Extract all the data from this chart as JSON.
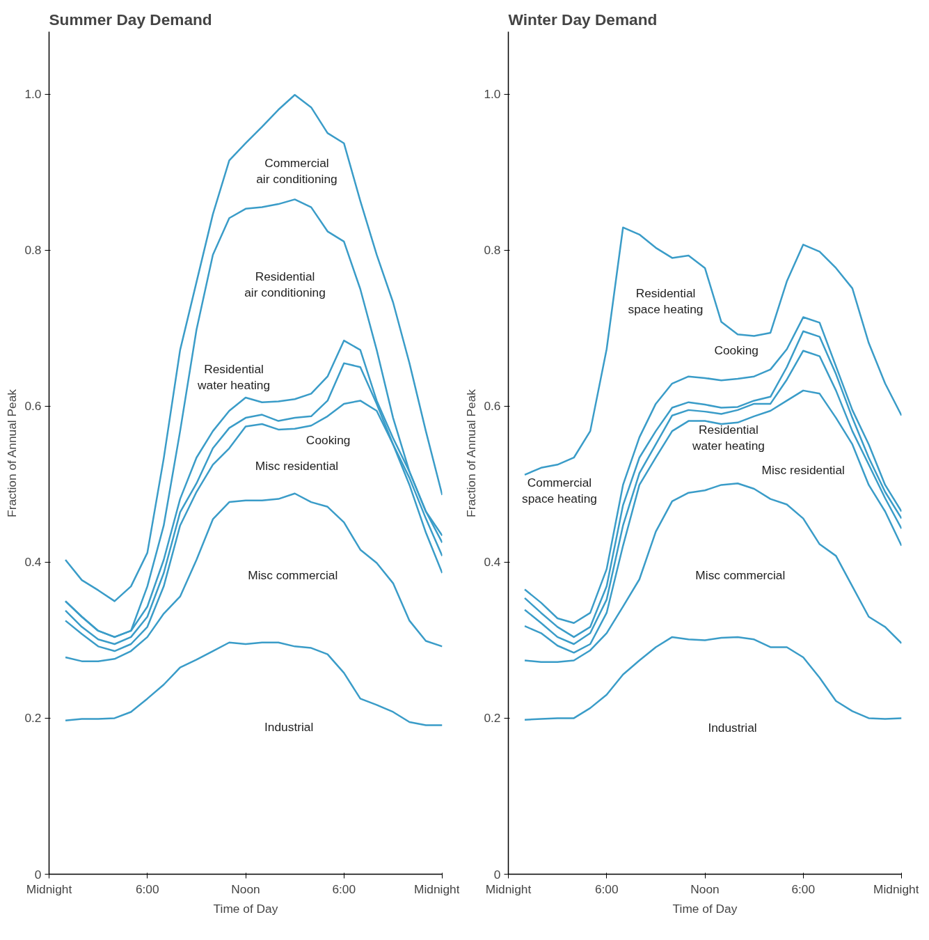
{
  "chart_data": [
    {
      "type": "line",
      "title": "Summer Day Demand",
      "xlabel": "Time of Day",
      "ylabel": "Fraction of Annual Peak",
      "ylim": [
        0,
        1.08
      ],
      "categories": [
        "Midnight",
        null,
        null,
        null,
        null,
        null,
        "6:00",
        null,
        null,
        null,
        null,
        null,
        "Noon",
        null,
        null,
        null,
        null,
        null,
        "6:00",
        null,
        null,
        null,
        null,
        null,
        "Midnight"
      ],
      "yticks": [
        0,
        {
          "value": 0.2,
          "label": "0.2"
        },
        {
          "value": 0.4,
          "label": "0.4"
        },
        {
          "value": 0.6,
          "label": "0.6"
        },
        {
          "value": 0.8,
          "label": "0.8"
        },
        {
          "value": 1.0,
          "label": "1.0"
        }
      ],
      "grid": false,
      "marker": "none",
      "line_style": "solid",
      "series": [
        {
          "color": "#3a9cc8",
          "values": [
            null,
            0.197,
            0.199,
            0.199,
            0.2,
            0.208,
            0.225,
            0.243,
            0.265,
            0.275,
            0.286,
            0.297,
            0.295,
            0.297,
            0.297,
            0.292,
            0.29,
            0.282,
            0.258,
            0.225,
            0.217,
            0.208,
            0.195,
            0.191,
            0.191
          ]
        },
        {
          "color": "#3a9cc8",
          "values": [
            null,
            0.278,
            0.273,
            0.273,
            0.276,
            0.286,
            0.304,
            0.334,
            0.356,
            0.403,
            0.455,
            0.477,
            0.479,
            0.479,
            0.481,
            0.488,
            0.477,
            0.471,
            0.451,
            0.416,
            0.399,
            0.373,
            0.325,
            0.299,
            0.292
          ]
        },
        {
          "color": "#3a9cc8",
          "values": [
            null,
            0.325,
            0.308,
            0.292,
            0.286,
            0.295,
            0.317,
            0.369,
            0.447,
            0.49,
            0.525,
            0.546,
            0.574,
            0.577,
            0.57,
            0.571,
            0.575,
            0.587,
            0.603,
            0.607,
            0.594,
            0.551,
            0.499,
            0.438,
            0.386
          ]
        },
        {
          "color": "#3a9cc8",
          "values": [
            null,
            0.338,
            0.317,
            0.301,
            0.295,
            0.304,
            0.33,
            0.386,
            0.464,
            0.501,
            0.546,
            0.572,
            0.585,
            0.589,
            0.581,
            0.585,
            0.587,
            0.607,
            0.655,
            0.65,
            0.603,
            0.551,
            0.508,
            0.456,
            0.408
          ]
        },
        {
          "color": "#3a9cc8",
          "values": [
            null,
            0.35,
            0.33,
            0.312,
            0.304,
            0.312,
            0.343,
            0.403,
            0.481,
            0.534,
            0.568,
            0.594,
            0.611,
            0.605,
            0.606,
            0.609,
            0.616,
            0.638,
            0.684,
            0.672,
            0.607,
            0.559,
            0.516,
            0.465,
            0.425
          ]
        },
        {
          "color": "#3a9cc8",
          "values": [
            null,
            0.35,
            0.33,
            0.312,
            0.304,
            0.312,
            0.369,
            0.447,
            0.568,
            0.698,
            0.794,
            0.841,
            0.853,
            0.855,
            0.859,
            0.865,
            0.855,
            0.824,
            0.811,
            0.75,
            0.672,
            0.585,
            0.516,
            0.465,
            0.434
          ]
        },
        {
          "color": "#3a9cc8",
          "values": [
            null,
            0.403,
            0.377,
            0.364,
            0.35,
            0.369,
            0.412,
            0.533,
            0.672,
            0.759,
            0.846,
            0.915,
            0.937,
            0.958,
            0.98,
            0.999,
            0.983,
            0.95,
            0.937,
            0.863,
            0.794,
            0.733,
            0.655,
            0.568,
            0.486
          ]
        }
      ],
      "annotations": [
        "Commercial\nair conditioning",
        "Residential\nair conditioning",
        "Residential\nwater heating",
        "Cooking",
        "Misc residential",
        "Misc commercial",
        "Industrial"
      ]
    },
    {
      "type": "line",
      "title": "Winter Day Demand",
      "xlabel": "Time of Day",
      "ylabel": "Fraction of Annual Peak",
      "ylim": [
        0,
        1.08
      ],
      "categories": [
        "Midnight",
        null,
        null,
        null,
        null,
        null,
        "6:00",
        null,
        null,
        null,
        null,
        null,
        "Noon",
        null,
        null,
        null,
        null,
        null,
        "6:00",
        null,
        null,
        null,
        null,
        null,
        "Midnight"
      ],
      "yticks": [
        0,
        {
          "value": 0.2,
          "label": "0.2"
        },
        {
          "value": 0.4,
          "label": "0.4"
        },
        {
          "value": 0.6,
          "label": "0.6"
        },
        {
          "value": 0.8,
          "label": "0.8"
        },
        {
          "value": 1.0,
          "label": "1.0"
        }
      ],
      "grid": false,
      "marker": "none",
      "line_style": "solid",
      "series": [
        {
          "color": "#3a9cc8",
          "values": [
            null,
            0.198,
            0.199,
            0.2,
            0.2,
            0.213,
            0.23,
            0.256,
            0.274,
            0.291,
            0.304,
            0.301,
            0.3,
            0.303,
            0.304,
            0.301,
            0.291,
            0.291,
            0.278,
            0.252,
            0.222,
            0.209,
            0.2,
            0.199,
            0.2
          ]
        },
        {
          "color": "#3a9cc8",
          "values": [
            null,
            0.274,
            0.272,
            0.272,
            0.274,
            0.287,
            0.309,
            0.343,
            0.378,
            0.439,
            0.478,
            0.489,
            0.492,
            0.499,
            0.501,
            0.494,
            0.481,
            0.474,
            0.456,
            0.423,
            0.408,
            0.369,
            0.33,
            0.317,
            0.296
          ]
        },
        {
          "color": "#3a9cc8",
          "values": [
            null,
            0.318,
            0.309,
            0.293,
            0.284,
            0.295,
            0.335,
            0.421,
            0.499,
            0.534,
            0.568,
            0.581,
            0.581,
            0.577,
            0.579,
            0.587,
            0.594,
            0.607,
            0.62,
            0.616,
            0.585,
            0.551,
            0.499,
            0.465,
            0.421
          ]
        },
        {
          "color": "#3a9cc8",
          "values": [
            null,
            0.339,
            0.322,
            0.304,
            0.295,
            0.309,
            0.352,
            0.447,
            0.514,
            0.551,
            0.588,
            0.595,
            0.593,
            0.59,
            0.595,
            0.603,
            0.603,
            0.634,
            0.671,
            0.664,
            0.62,
            0.568,
            0.525,
            0.482,
            0.443
          ]
        },
        {
          "color": "#3a9cc8",
          "values": [
            null,
            0.354,
            0.335,
            0.317,
            0.304,
            0.317,
            0.369,
            0.473,
            0.534,
            0.568,
            0.598,
            0.605,
            0.602,
            0.598,
            0.599,
            0.607,
            0.612,
            0.65,
            0.696,
            0.689,
            0.641,
            0.585,
            0.534,
            0.49,
            0.456
          ]
        },
        {
          "color": "#3a9cc8",
          "values": [
            null,
            0.365,
            0.348,
            0.328,
            0.322,
            0.335,
            0.391,
            0.499,
            0.56,
            0.603,
            0.629,
            0.638,
            0.636,
            0.633,
            0.635,
            0.638,
            0.647,
            0.673,
            0.714,
            0.707,
            0.651,
            0.595,
            0.551,
            0.499,
            0.465
          ]
        },
        {
          "color": "#3a9cc8",
          "values": [
            null,
            0.512,
            0.521,
            0.525,
            0.534,
            0.568,
            0.673,
            0.829,
            0.82,
            0.803,
            0.79,
            0.793,
            0.777,
            0.708,
            0.692,
            0.69,
            0.694,
            0.76,
            0.807,
            0.798,
            0.777,
            0.751,
            0.681,
            0.629,
            0.588
          ]
        }
      ],
      "annotations": [
        "Residential\nspace heating",
        "Cooking",
        "Residential\nwater heating",
        "Misc residential",
        "Commercial\nspace heating",
        "Misc commercial",
        "Industrial"
      ]
    }
  ]
}
